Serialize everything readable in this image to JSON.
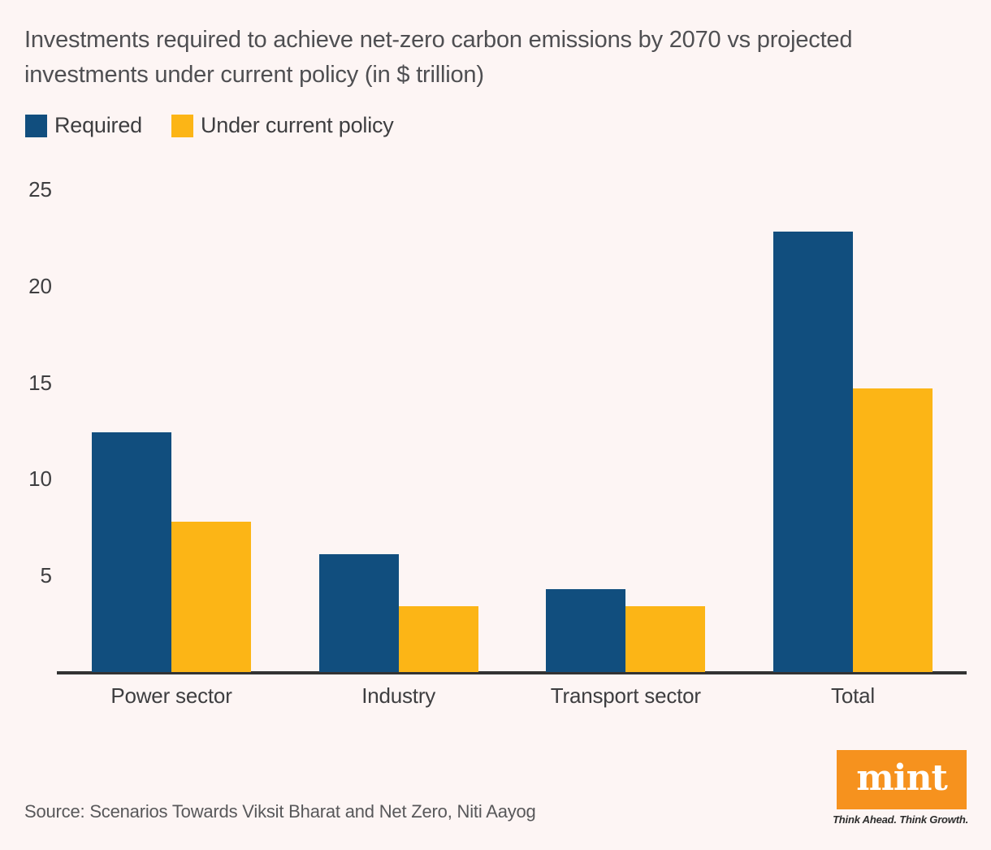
{
  "title": "Investments required to achieve net-zero carbon emissions by 2070 vs projected investments under current policy (in $ trillion)",
  "legend": [
    {
      "label": "Required",
      "color": "#114e7e"
    },
    {
      "label": "Under current policy",
      "color": "#fcb516"
    }
  ],
  "chart_data": {
    "type": "bar",
    "title": "Investments required to achieve net-zero carbon emissions by 2070 vs projected investments under current policy (in $ trillion)",
    "categories": [
      "Power sector",
      "Industry",
      "Transport sector",
      "Total"
    ],
    "series": [
      {
        "name": "Required",
        "color": "#114e7e",
        "values": [
          12.4,
          6.1,
          4.3,
          22.8
        ]
      },
      {
        "name": "Under current policy",
        "color": "#fcb516",
        "values": [
          7.8,
          3.4,
          3.4,
          14.7
        ]
      }
    ],
    "xlabel": "",
    "ylabel": "",
    "ylim": [
      0,
      25
    ],
    "yticks": [
      5,
      10,
      15,
      20,
      25
    ],
    "grid": false,
    "legend_position": "top-left"
  },
  "source": "Source: Scenarios Towards Viksit Bharat and Net Zero, Niti Aayog",
  "branding": {
    "logo_text": "mint",
    "tagline": "Think Ahead. Think Growth.",
    "logo_color": "#f6921e"
  },
  "colors": {
    "background": "#fdf5f4",
    "axis": "#333333",
    "required_bar": "#114e7e",
    "current_policy_bar": "#fcb516",
    "title_text": "#4f4f52",
    "body_text": "#3e3e40"
  }
}
